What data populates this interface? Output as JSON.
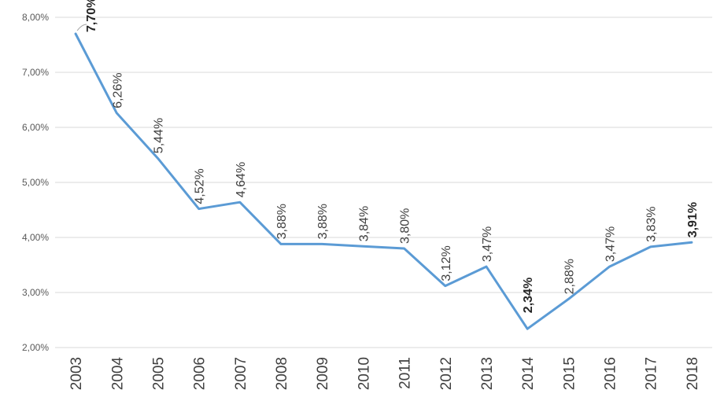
{
  "chart_data": {
    "type": "line",
    "categories": [
      "2003",
      "2004",
      "2005",
      "2006",
      "2007",
      "2008",
      "2009",
      "2010",
      "2011",
      "2012",
      "2013",
      "2014",
      "2015",
      "2016",
      "2017",
      "2018"
    ],
    "series": [
      {
        "values": [
          7.7,
          6.26,
          5.44,
          4.52,
          4.64,
          3.88,
          3.88,
          3.84,
          3.8,
          3.12,
          3.47,
          2.34,
          2.88,
          3.47,
          3.83,
          3.91
        ],
        "color": "#5b9bd5"
      }
    ],
    "data_labels": [
      "7,70%",
      "6,26%",
      "5,44%",
      "4,52%",
      "4,64%",
      "3,88%",
      "3,88%",
      "3,84%",
      "3,80%",
      "3,12%",
      "3,47%",
      "2,34%",
      "2,88%",
      "3,47%",
      "3,83%",
      "3,91%"
    ],
    "bold_labels": [
      0,
      11,
      15
    ],
    "ylim": [
      2.0,
      8.0
    ],
    "yticks": [
      2,
      3,
      4,
      5,
      6,
      7,
      8
    ],
    "ytick_labels": [
      "2,00%",
      "3,00%",
      "4,00%",
      "5,00%",
      "6,00%",
      "7,00%",
      "8,00%"
    ],
    "grid": true,
    "legend": "none"
  }
}
